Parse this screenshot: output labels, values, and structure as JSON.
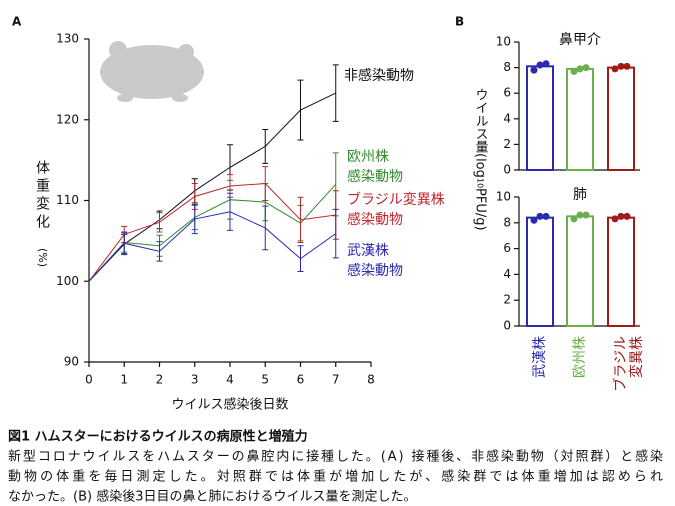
{
  "panel_labels": [
    "A",
    "B"
  ],
  "chart_data": [
    {
      "type": "line",
      "y_label": "体重変化",
      "y_unit": "(%)",
      "x_label": "ウイルス感染後日数",
      "x": [
        0,
        1,
        2,
        3,
        4,
        5,
        6,
        7
      ],
      "xlim": [
        0,
        8
      ],
      "xticks": [
        0,
        1,
        2,
        3,
        4,
        5,
        6,
        7,
        8
      ],
      "ylim": [
        90,
        130
      ],
      "yticks": [
        90,
        100,
        110,
        120,
        130
      ],
      "series": [
        {
          "name": "非感染動物",
          "color": "#111111",
          "values": [
            100,
            104.6,
            107.6,
            111.2,
            114.1,
            116.7,
            121.2,
            123.3
          ],
          "errors": [
            null,
            1.2,
            1.1,
            1.5,
            2.8,
            2.1,
            3.7,
            3.5
          ]
        },
        {
          "name": "欧州株\n感染動物",
          "color": "#2e8b2e",
          "values": [
            100,
            104.8,
            104.4,
            107.9,
            110.1,
            109.8,
            107.2,
            112
          ],
          "errors": [
            null,
            1.2,
            1.3,
            1.5,
            2.4,
            2.3,
            2.2,
            3.9
          ]
        },
        {
          "name": "ブラジル変異株\n感染動物",
          "color": "#c0262d",
          "values": [
            100,
            105.8,
            107.3,
            110.5,
            111.8,
            112.1,
            107.6,
            108.2
          ],
          "errors": [
            null,
            1,
            1.2,
            1.6,
            1.4,
            2.1,
            2.8,
            3
          ]
        },
        {
          "name": "武漢株\n感染動物",
          "color": "#2a2ab0",
          "values": [
            100,
            104.7,
            103.7,
            107.7,
            108.6,
            106.6,
            102.8,
            105.9
          ],
          "errors": [
            null,
            1.4,
            1.2,
            1.8,
            2.3,
            2.7,
            1.6,
            3
          ]
        }
      ]
    },
    {
      "type": "bar",
      "title": "鼻甲介",
      "y_label": "ウイルス量",
      "y_unit_parts": [
        "(log",
        "10",
        "PFU/g)"
      ],
      "ylim": [
        0,
        10
      ],
      "yticks": [
        0,
        2,
        4,
        6,
        8,
        10
      ],
      "values": [
        8.1,
        7.9,
        8.0
      ],
      "colors": [
        "#2a2ab0",
        "#6bb04a",
        "#a01a1a"
      ],
      "points": [
        [
          7.8,
          8.2,
          8.3
        ],
        [
          7.7,
          7.9,
          8.0
        ],
        [
          7.9,
          8.1,
          8.1
        ]
      ]
    },
    {
      "type": "bar",
      "title": "肺",
      "ylim": [
        0,
        10
      ],
      "yticks": [
        0,
        2,
        4,
        6,
        8,
        10
      ],
      "categories": [
        "武漢株",
        "欧州株",
        "ブラジル\n変異株"
      ],
      "values": [
        8.4,
        8.5,
        8.4
      ],
      "colors": [
        "#2a2ab0",
        "#6bb04a",
        "#a01a1a"
      ],
      "points": [
        [
          8.2,
          8.5,
          8.5
        ],
        [
          8.3,
          8.6,
          8.6
        ],
        [
          8.3,
          8.5,
          8.5
        ]
      ]
    }
  ],
  "caption": {
    "title": "図1 ハムスターにおけるウイルスの病原性と増殖力",
    "lines": [
      "新型コロナウイルスをハムスターの鼻腔内に接種した。(A) 接種後、非感染動物（対照群）と感染",
      "動物の体重を毎日測定した。対照群では体重が増加したが、感染群では体重増加は認められ",
      "なかった。(B) 感染後3日目の鼻と肺におけるウイルス量を測定した。"
    ]
  }
}
